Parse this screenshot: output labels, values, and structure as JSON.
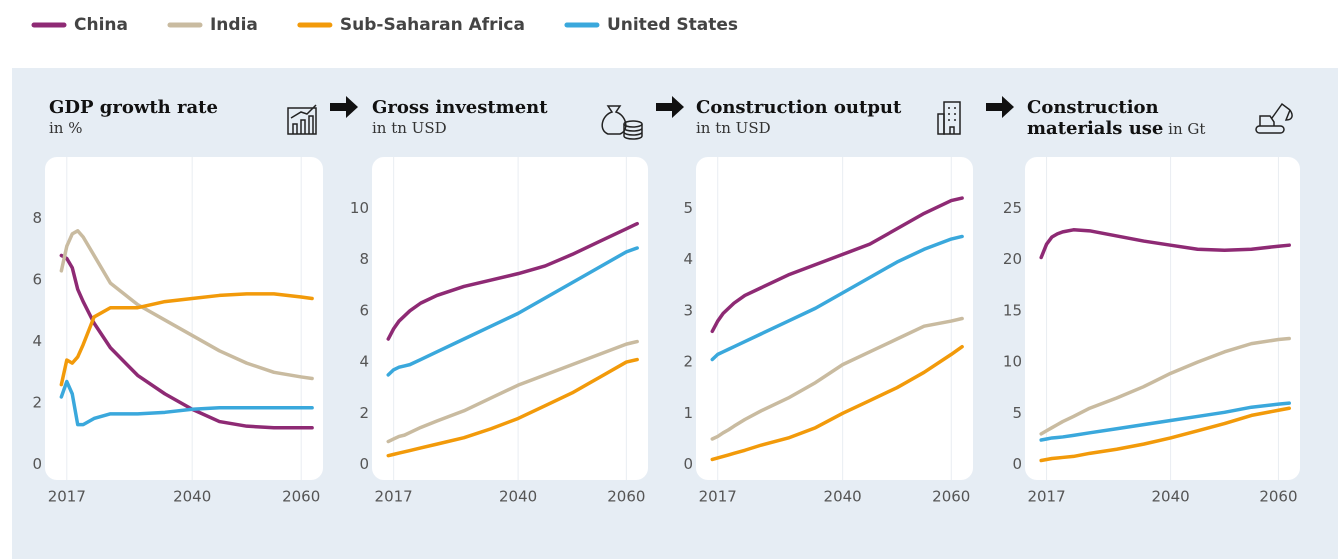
{
  "chart_data": [
    {
      "type": "line",
      "title": "GDP growth rate",
      "subtitle": "in %",
      "x": [
        2016,
        2017,
        2018,
        2019,
        2020,
        2022,
        2025,
        2030,
        2035,
        2040,
        2045,
        2050,
        2055,
        2060,
        2062
      ],
      "xlim": [
        2013,
        2064
      ],
      "xticks": [
        2017,
        2040,
        2060
      ],
      "xgrid": true,
      "ylim": [
        -0.5,
        10
      ],
      "yticks": [
        0,
        2,
        4,
        6,
        8
      ],
      "series": [
        {
          "name": "China",
          "color": "#8e2a74",
          "values": [
            6.8,
            6.7,
            6.4,
            5.7,
            5.3,
            4.6,
            3.8,
            2.9,
            2.3,
            1.8,
            1.4,
            1.25,
            1.2,
            1.2,
            1.2
          ]
        },
        {
          "name": "India",
          "color": "#c9bba0",
          "values": [
            6.3,
            7.1,
            7.5,
            7.6,
            7.4,
            6.8,
            5.9,
            5.2,
            4.7,
            4.2,
            3.7,
            3.3,
            3.0,
            2.85,
            2.8
          ]
        },
        {
          "name": "Sub-Saharan Africa",
          "color": "#f29a0a",
          "values": [
            2.6,
            3.4,
            3.3,
            3.5,
            3.9,
            4.8,
            5.1,
            5.1,
            5.3,
            5.4,
            5.5,
            5.55,
            5.55,
            5.45,
            5.4
          ]
        },
        {
          "name": "United States",
          "color": "#3aa8dc",
          "values": [
            2.2,
            2.7,
            2.3,
            1.3,
            1.3,
            1.5,
            1.65,
            1.65,
            1.7,
            1.8,
            1.85,
            1.85,
            1.85,
            1.85,
            1.85
          ]
        }
      ]
    },
    {
      "type": "line",
      "title": "Gross investment",
      "subtitle": "in tn USD",
      "x": [
        2016,
        2017,
        2018,
        2019,
        2020,
        2022,
        2025,
        2030,
        2035,
        2040,
        2045,
        2050,
        2055,
        2060,
        2062
      ],
      "xlim": [
        2013,
        2064
      ],
      "xticks": [
        2017,
        2040,
        2060
      ],
      "xgrid": true,
      "ylim": [
        -0.6,
        12
      ],
      "yticks": [
        0,
        2,
        4,
        6,
        8,
        10
      ],
      "series": [
        {
          "name": "China",
          "color": "#8e2a74",
          "values": [
            4.9,
            5.3,
            5.6,
            5.8,
            6.0,
            6.3,
            6.6,
            6.95,
            7.2,
            7.45,
            7.75,
            8.2,
            8.7,
            9.2,
            9.4
          ]
        },
        {
          "name": "India",
          "color": "#c9bba0",
          "values": [
            0.9,
            1.0,
            1.1,
            1.15,
            1.25,
            1.45,
            1.7,
            2.1,
            2.6,
            3.1,
            3.5,
            3.9,
            4.3,
            4.7,
            4.8
          ]
        },
        {
          "name": "Sub-Saharan Africa",
          "color": "#f29a0a",
          "values": [
            0.35,
            0.4,
            0.45,
            0.5,
            0.55,
            0.65,
            0.8,
            1.05,
            1.4,
            1.8,
            2.3,
            2.8,
            3.4,
            4.0,
            4.1
          ]
        },
        {
          "name": "United States",
          "color": "#3aa8dc",
          "values": [
            3.5,
            3.7,
            3.8,
            3.85,
            3.9,
            4.1,
            4.4,
            4.9,
            5.4,
            5.9,
            6.5,
            7.1,
            7.7,
            8.3,
            8.45
          ]
        }
      ]
    },
    {
      "type": "line",
      "title": "Construction output",
      "subtitle": "in tn USD",
      "x": [
        2016,
        2017,
        2018,
        2019,
        2020,
        2022,
        2025,
        2030,
        2035,
        2040,
        2045,
        2050,
        2055,
        2060,
        2062
      ],
      "xlim": [
        2013,
        2064
      ],
      "xticks": [
        2017,
        2040,
        2060
      ],
      "xgrid": true,
      "ylim": [
        -0.3,
        6
      ],
      "yticks": [
        0,
        1,
        2,
        3,
        4,
        5
      ],
      "series": [
        {
          "name": "China",
          "color": "#8e2a74",
          "values": [
            2.6,
            2.8,
            2.95,
            3.05,
            3.15,
            3.3,
            3.45,
            3.7,
            3.9,
            4.1,
            4.3,
            4.6,
            4.9,
            5.15,
            5.2
          ]
        },
        {
          "name": "India",
          "color": "#c9bba0",
          "values": [
            0.5,
            0.55,
            0.62,
            0.68,
            0.75,
            0.88,
            1.05,
            1.3,
            1.6,
            1.95,
            2.2,
            2.45,
            2.7,
            2.8,
            2.85
          ]
        },
        {
          "name": "Sub-Saharan Africa",
          "color": "#f29a0a",
          "values": [
            0.1,
            0.13,
            0.16,
            0.19,
            0.22,
            0.28,
            0.38,
            0.52,
            0.72,
            1.0,
            1.25,
            1.5,
            1.8,
            2.15,
            2.3
          ]
        },
        {
          "name": "United States",
          "color": "#3aa8dc",
          "values": [
            2.05,
            2.15,
            2.2,
            2.25,
            2.3,
            2.4,
            2.55,
            2.8,
            3.05,
            3.35,
            3.65,
            3.95,
            4.2,
            4.4,
            4.45
          ]
        }
      ]
    },
    {
      "type": "line",
      "title": "Construction materials use",
      "subtitle": "in Gt",
      "x": [
        2016,
        2017,
        2018,
        2019,
        2020,
        2022,
        2025,
        2030,
        2035,
        2040,
        2045,
        2050,
        2055,
        2060,
        2062
      ],
      "xlim": [
        2013,
        2064
      ],
      "xticks": [
        2017,
        2040,
        2060
      ],
      "xgrid": true,
      "ylim": [
        -1.5,
        30
      ],
      "yticks": [
        0,
        5,
        10,
        15,
        20,
        25
      ],
      "series": [
        {
          "name": "China",
          "color": "#8e2a74",
          "values": [
            20.2,
            21.5,
            22.2,
            22.5,
            22.7,
            22.9,
            22.8,
            22.3,
            21.8,
            21.4,
            21.0,
            20.9,
            21.0,
            21.3,
            21.4
          ]
        },
        {
          "name": "India",
          "color": "#c9bba0",
          "values": [
            3.0,
            3.3,
            3.6,
            3.9,
            4.2,
            4.7,
            5.5,
            6.5,
            7.6,
            8.9,
            10.0,
            11.0,
            11.8,
            12.2,
            12.3
          ]
        },
        {
          "name": "Sub-Saharan Africa",
          "color": "#f29a0a",
          "values": [
            0.4,
            0.5,
            0.6,
            0.65,
            0.7,
            0.8,
            1.1,
            1.5,
            2.0,
            2.6,
            3.3,
            4.0,
            4.8,
            5.3,
            5.5
          ]
        },
        {
          "name": "United States",
          "color": "#3aa8dc",
          "values": [
            2.4,
            2.5,
            2.6,
            2.65,
            2.7,
            2.85,
            3.1,
            3.5,
            3.9,
            4.3,
            4.7,
            5.1,
            5.6,
            5.9,
            6.0
          ]
        }
      ]
    }
  ]
}
